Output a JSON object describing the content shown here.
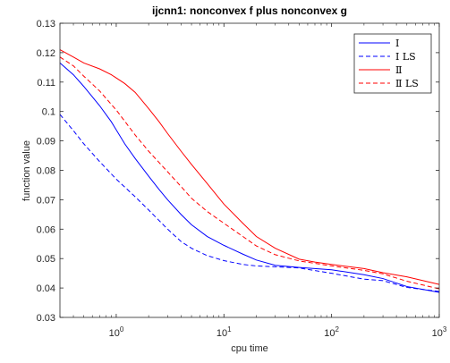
{
  "chart_data": {
    "type": "line",
    "title": "ijcnn1: nonconvex f plus nonconvex g",
    "xlabel": "cpu time",
    "ylabel": "function value",
    "xscale": "log",
    "xlim": [
      0.3,
      1000
    ],
    "ylim": [
      0.03,
      0.13
    ],
    "x_ticks": [
      {
        "value": 1,
        "base": "10",
        "exp": "0"
      },
      {
        "value": 10,
        "base": "10",
        "exp": "1"
      },
      {
        "value": 100,
        "base": "10",
        "exp": "2"
      },
      {
        "value": 1000,
        "base": "10",
        "exp": "3"
      }
    ],
    "y_ticks": [
      {
        "value": 0.03,
        "label": "0.03"
      },
      {
        "value": 0.04,
        "label": "0.04"
      },
      {
        "value": 0.05,
        "label": "0.05"
      },
      {
        "value": 0.06,
        "label": "0.06"
      },
      {
        "value": 0.07,
        "label": "0.07"
      },
      {
        "value": 0.08,
        "label": "0.08"
      },
      {
        "value": 0.09,
        "label": "0.09"
      },
      {
        "value": 0.1,
        "label": "0.1"
      },
      {
        "value": 0.11,
        "label": "0.11"
      },
      {
        "value": 0.12,
        "label": "0.12"
      },
      {
        "value": 0.13,
        "label": "0.13"
      }
    ],
    "grid": false,
    "legend_position": "top-right",
    "series": [
      {
        "name": "Ⅰ",
        "color": "#0000ff",
        "dash": "solid",
        "points": [
          [
            0.3,
            0.1165
          ],
          [
            0.4,
            0.1125
          ],
          [
            0.5,
            0.1085
          ],
          [
            0.7,
            0.102
          ],
          [
            0.9,
            0.0965
          ],
          [
            1.2,
            0.089
          ],
          [
            1.5,
            0.084
          ],
          [
            2,
            0.078
          ],
          [
            2.5,
            0.0735
          ],
          [
            3,
            0.07
          ],
          [
            4,
            0.065
          ],
          [
            5,
            0.0615
          ],
          [
            7,
            0.0575
          ],
          [
            10,
            0.0545
          ],
          [
            15,
            0.0515
          ],
          [
            20,
            0.0495
          ],
          [
            30,
            0.0477
          ],
          [
            50,
            0.047
          ],
          [
            100,
            0.0462
          ],
          [
            200,
            0.0445
          ],
          [
            300,
            0.0432
          ],
          [
            500,
            0.0405
          ],
          [
            1000,
            0.0385
          ]
        ]
      },
      {
        "name": "Ⅰ LS",
        "color": "#0000ff",
        "dash": "dashed",
        "points": [
          [
            0.3,
            0.099
          ],
          [
            0.4,
            0.0935
          ],
          [
            0.5,
            0.089
          ],
          [
            0.7,
            0.083
          ],
          [
            1,
            0.077
          ],
          [
            1.5,
            0.071
          ],
          [
            2,
            0.0665
          ],
          [
            3,
            0.06
          ],
          [
            4,
            0.0558
          ],
          [
            5,
            0.0535
          ],
          [
            7,
            0.051
          ],
          [
            10,
            0.0493
          ],
          [
            15,
            0.048
          ],
          [
            20,
            0.0475
          ],
          [
            30,
            0.0472
          ],
          [
            50,
            0.0468
          ],
          [
            100,
            0.045
          ],
          [
            200,
            0.043
          ],
          [
            300,
            0.0425
          ],
          [
            500,
            0.0402
          ],
          [
            1000,
            0.0388
          ]
        ]
      },
      {
        "name": "Ⅱ",
        "color": "#ff0000",
        "dash": "solid",
        "points": [
          [
            0.3,
            0.121
          ],
          [
            0.4,
            0.1185
          ],
          [
            0.5,
            0.1165
          ],
          [
            0.7,
            0.1145
          ],
          [
            0.9,
            0.1125
          ],
          [
            1.2,
            0.1095
          ],
          [
            1.5,
            0.1065
          ],
          [
            2,
            0.101
          ],
          [
            2.5,
            0.0965
          ],
          [
            3,
            0.0925
          ],
          [
            4,
            0.0865
          ],
          [
            5,
            0.082
          ],
          [
            7,
            0.0755
          ],
          [
            10,
            0.0685
          ],
          [
            15,
            0.062
          ],
          [
            20,
            0.0575
          ],
          [
            30,
            0.0535
          ],
          [
            50,
            0.0498
          ],
          [
            70,
            0.0488
          ],
          [
            100,
            0.048
          ],
          [
            200,
            0.0466
          ],
          [
            300,
            0.0452
          ],
          [
            500,
            0.0438
          ],
          [
            1000,
            0.0412
          ]
        ]
      },
      {
        "name": "Ⅱ LS",
        "color": "#ff0000",
        "dash": "dashed",
        "points": [
          [
            0.3,
            0.1185
          ],
          [
            0.4,
            0.1155
          ],
          [
            0.5,
            0.112
          ],
          [
            0.7,
            0.107
          ],
          [
            1,
            0.1005
          ],
          [
            1.5,
            0.092
          ],
          [
            2,
            0.0865
          ],
          [
            3,
            0.0795
          ],
          [
            4,
            0.0745
          ],
          [
            5,
            0.0705
          ],
          [
            7,
            0.066
          ],
          [
            10,
            0.062
          ],
          [
            15,
            0.0575
          ],
          [
            20,
            0.0543
          ],
          [
            30,
            0.0513
          ],
          [
            50,
            0.0492
          ],
          [
            100,
            0.0475
          ],
          [
            200,
            0.046
          ],
          [
            300,
            0.0448
          ],
          [
            500,
            0.0423
          ],
          [
            1000,
            0.0397
          ]
        ]
      }
    ]
  }
}
